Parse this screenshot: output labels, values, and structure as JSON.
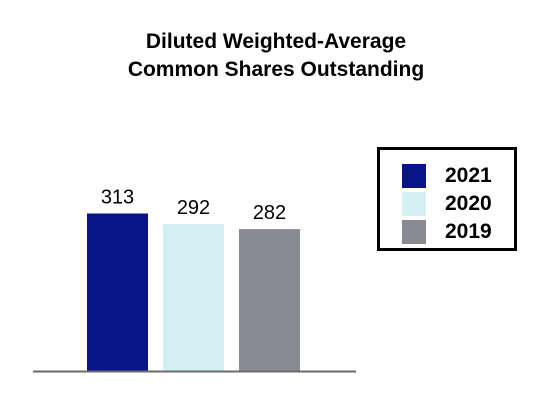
{
  "chart_data": {
    "type": "bar",
    "title": [
      "Diluted Weighted-Average",
      "Common Shares Outstanding"
    ],
    "categories": [
      "2021",
      "2020",
      "2019"
    ],
    "values": [
      313,
      292,
      282
    ],
    "data_labels": [
      "313",
      "292",
      "282"
    ],
    "colors": [
      "#0a1489",
      "#d5f0f4",
      "#888a94"
    ],
    "axis_color": "#6b6b6b",
    "ylim": [
      0,
      320
    ],
    "grid": false,
    "legend": {
      "placement": "right",
      "entries": [
        "2021",
        "2020",
        "2019"
      ]
    }
  }
}
